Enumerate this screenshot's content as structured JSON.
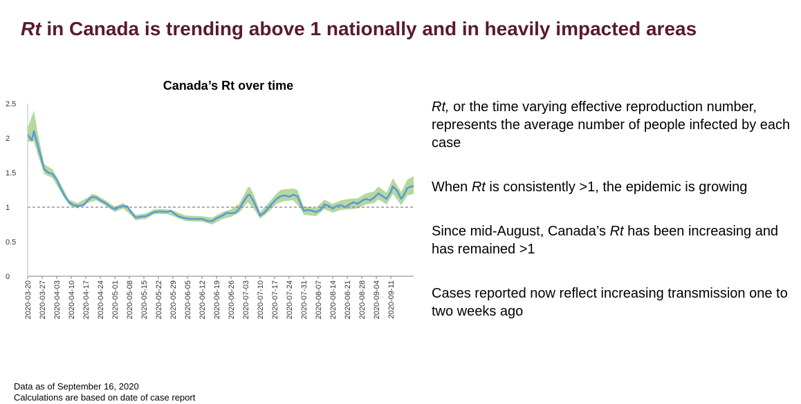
{
  "slide": {
    "title_italic": "Rt",
    "title_rest": " in Canada is trending above 1 nationally and in heavily impacted areas"
  },
  "chart_data": {
    "type": "line",
    "title": "Canada’s Rt over time",
    "xlabel": "",
    "ylabel": "",
    "ylim": [
      0,
      2.5
    ],
    "yticks": [
      0,
      0.5,
      1,
      1.5,
      2,
      2.5
    ],
    "ytick_labels": [
      "0",
      "0.5",
      "1",
      "1.5",
      "2",
      "2.5"
    ],
    "reference_line": 1,
    "x_start": "2020-03-20",
    "x_end": "2020-09-15",
    "x_tick_labels": [
      "2020-03-20",
      "2020-03-27",
      "2020-04-03",
      "2020-04-10",
      "2020-04-17",
      "2020-04-24",
      "2020-05-01",
      "2020-05-08",
      "2020-05-15",
      "2020-05-22",
      "2020-05-29",
      "2020-06-05",
      "2020-06-12",
      "2020-06-19",
      "2020-06-26",
      "2020-07-03",
      "2020-07-10",
      "2020-07-17",
      "2020-07-24",
      "2020-07-31",
      "2020-08-07",
      "2020-08-14",
      "2020-08-21",
      "2020-08-28",
      "2020-09-04",
      "2020-09-11"
    ],
    "colors": {
      "line": "#5b9bd5",
      "band": "#a9d18e",
      "reference": "#7f7f7f"
    },
    "series": [
      {
        "name": "Rt",
        "points": [
          [
            0,
            2.05
          ],
          [
            2,
            1.97
          ],
          [
            3,
            2.1
          ],
          [
            5,
            1.88
          ],
          [
            8,
            1.55
          ],
          [
            10,
            1.5
          ],
          [
            12,
            1.48
          ],
          [
            14,
            1.4
          ],
          [
            16,
            1.27
          ],
          [
            18,
            1.15
          ],
          [
            20,
            1.07
          ],
          [
            22,
            1.03
          ],
          [
            24,
            1.02
          ],
          [
            27,
            1.03
          ],
          [
            29,
            1.1
          ],
          [
            31,
            1.15
          ],
          [
            33,
            1.14
          ],
          [
            35,
            1.1
          ],
          [
            38,
            1.05
          ],
          [
            40,
            1.0
          ],
          [
            42,
            0.97
          ],
          [
            44,
            1.0
          ],
          [
            46,
            1.02
          ],
          [
            48,
            1.01
          ],
          [
            50,
            0.92
          ],
          [
            52,
            0.85
          ],
          [
            54,
            0.86
          ],
          [
            57,
            0.87
          ],
          [
            59,
            0.9
          ],
          [
            61,
            0.93
          ],
          [
            64,
            0.94
          ],
          [
            67,
            0.93
          ],
          [
            69,
            0.95
          ],
          [
            71,
            0.9
          ],
          [
            73,
            0.86
          ],
          [
            76,
            0.84
          ],
          [
            78,
            0.83
          ],
          [
            81,
            0.83
          ],
          [
            84,
            0.83
          ],
          [
            87,
            0.8
          ],
          [
            89,
            0.8
          ],
          [
            91,
            0.84
          ],
          [
            94,
            0.88
          ],
          [
            96,
            0.92
          ],
          [
            98,
            0.91
          ],
          [
            100,
            0.92
          ],
          [
            102,
            0.98
          ],
          [
            104,
            1.08
          ],
          [
            106,
            1.17
          ],
          [
            107,
            1.18
          ],
          [
            109,
            1.08
          ],
          [
            111,
            0.95
          ],
          [
            112,
            0.88
          ],
          [
            114,
            0.92
          ],
          [
            116,
            0.99
          ],
          [
            118,
            1.06
          ],
          [
            120,
            1.12
          ],
          [
            122,
            1.16
          ],
          [
            124,
            1.17
          ],
          [
            126,
            1.15
          ],
          [
            128,
            1.18
          ],
          [
            130,
            1.16
          ],
          [
            132,
            1.02
          ],
          [
            133,
            0.95
          ],
          [
            135,
            0.96
          ],
          [
            137,
            0.95
          ],
          [
            139,
            0.93
          ],
          [
            141,
            0.96
          ],
          [
            143,
            1.04
          ],
          [
            145,
            1.02
          ],
          [
            147,
            0.98
          ],
          [
            149,
            1.02
          ],
          [
            151,
            1.03
          ],
          [
            153,
            1.0
          ],
          [
            155,
            1.04
          ],
          [
            157,
            1.07
          ],
          [
            159,
            1.05
          ],
          [
            161,
            1.09
          ],
          [
            163,
            1.12
          ],
          [
            165,
            1.1
          ],
          [
            167,
            1.14
          ],
          [
            169,
            1.2
          ],
          [
            171,
            1.16
          ],
          [
            173,
            1.12
          ],
          [
            175,
            1.22
          ],
          [
            176,
            1.3
          ],
          [
            178,
            1.24
          ],
          [
            180,
            1.12
          ],
          [
            181,
            1.16
          ],
          [
            183,
            1.28
          ],
          [
            185,
            1.3
          ],
          [
            186,
            1.31
          ]
        ],
        "band_lower": [
          [
            0,
            1.95
          ],
          [
            3,
            1.95
          ],
          [
            5,
            1.75
          ],
          [
            8,
            1.48
          ],
          [
            12,
            1.42
          ],
          [
            16,
            1.22
          ],
          [
            20,
            1.03
          ],
          [
            24,
            0.98
          ],
          [
            29,
            1.06
          ],
          [
            33,
            1.1
          ],
          [
            38,
            1.01
          ],
          [
            42,
            0.93
          ],
          [
            46,
            0.98
          ],
          [
            50,
            0.88
          ],
          [
            52,
            0.81
          ],
          [
            57,
            0.83
          ],
          [
            61,
            0.9
          ],
          [
            67,
            0.9
          ],
          [
            71,
            0.86
          ],
          [
            76,
            0.8
          ],
          [
            84,
            0.79
          ],
          [
            89,
            0.75
          ],
          [
            94,
            0.83
          ],
          [
            98,
            0.86
          ],
          [
            102,
            0.92
          ],
          [
            106,
            1.07
          ],
          [
            109,
            0.98
          ],
          [
            112,
            0.83
          ],
          [
            116,
            0.93
          ],
          [
            120,
            1.05
          ],
          [
            124,
            1.09
          ],
          [
            128,
            1.1
          ],
          [
            132,
            0.96
          ],
          [
            133,
            0.89
          ],
          [
            139,
            0.87
          ],
          [
            143,
            0.97
          ],
          [
            147,
            0.92
          ],
          [
            151,
            0.96
          ],
          [
            155,
            0.97
          ],
          [
            159,
            0.98
          ],
          [
            163,
            1.04
          ],
          [
            167,
            1.06
          ],
          [
            169,
            1.11
          ],
          [
            173,
            1.04
          ],
          [
            176,
            1.19
          ],
          [
            180,
            1.03
          ],
          [
            183,
            1.17
          ],
          [
            186,
            1.19
          ]
        ],
        "band_upper": [
          [
            0,
            2.15
          ],
          [
            3,
            2.4
          ],
          [
            5,
            2.05
          ],
          [
            8,
            1.62
          ],
          [
            12,
            1.55
          ],
          [
            16,
            1.33
          ],
          [
            20,
            1.11
          ],
          [
            24,
            1.06
          ],
          [
            29,
            1.14
          ],
          [
            31,
            1.19
          ],
          [
            33,
            1.18
          ],
          [
            38,
            1.09
          ],
          [
            42,
            1.01
          ],
          [
            46,
            1.06
          ],
          [
            50,
            0.96
          ],
          [
            52,
            0.89
          ],
          [
            57,
            0.91
          ],
          [
            61,
            0.97
          ],
          [
            67,
            0.97
          ],
          [
            71,
            0.94
          ],
          [
            76,
            0.88
          ],
          [
            84,
            0.87
          ],
          [
            89,
            0.85
          ],
          [
            94,
            0.93
          ],
          [
            98,
            0.97
          ],
          [
            102,
            1.05
          ],
          [
            106,
            1.28
          ],
          [
            107,
            1.3
          ],
          [
            109,
            1.18
          ],
          [
            112,
            0.93
          ],
          [
            116,
            1.06
          ],
          [
            120,
            1.2
          ],
          [
            122,
            1.25
          ],
          [
            124,
            1.26
          ],
          [
            128,
            1.27
          ],
          [
            130,
            1.25
          ],
          [
            132,
            1.09
          ],
          [
            133,
            1.01
          ],
          [
            139,
            0.99
          ],
          [
            143,
            1.11
          ],
          [
            147,
            1.05
          ],
          [
            151,
            1.1
          ],
          [
            155,
            1.12
          ],
          [
            159,
            1.13
          ],
          [
            163,
            1.2
          ],
          [
            167,
            1.23
          ],
          [
            169,
            1.3
          ],
          [
            173,
            1.21
          ],
          [
            176,
            1.42
          ],
          [
            180,
            1.22
          ],
          [
            183,
            1.4
          ],
          [
            186,
            1.45
          ]
        ]
      }
    ]
  },
  "bullets": [
    {
      "italic": "Rt,",
      "rest": " or the time varying effective reproduction number, represents the average number of people infected by each case"
    },
    {
      "before": "When ",
      "italic": "Rt",
      "rest": " is consistently >1, the epidemic is growing"
    },
    {
      "before": "Since mid-August, Canada’s ",
      "italic": "Rt",
      "rest": " has been increasing and has remained >1"
    },
    {
      "rest": "Cases reported now reflect increasing transmission one to two weeks ago"
    }
  ],
  "footer": {
    "line1": "Data as of September 16, 2020",
    "line2": "Calculations are based on date of case report"
  }
}
